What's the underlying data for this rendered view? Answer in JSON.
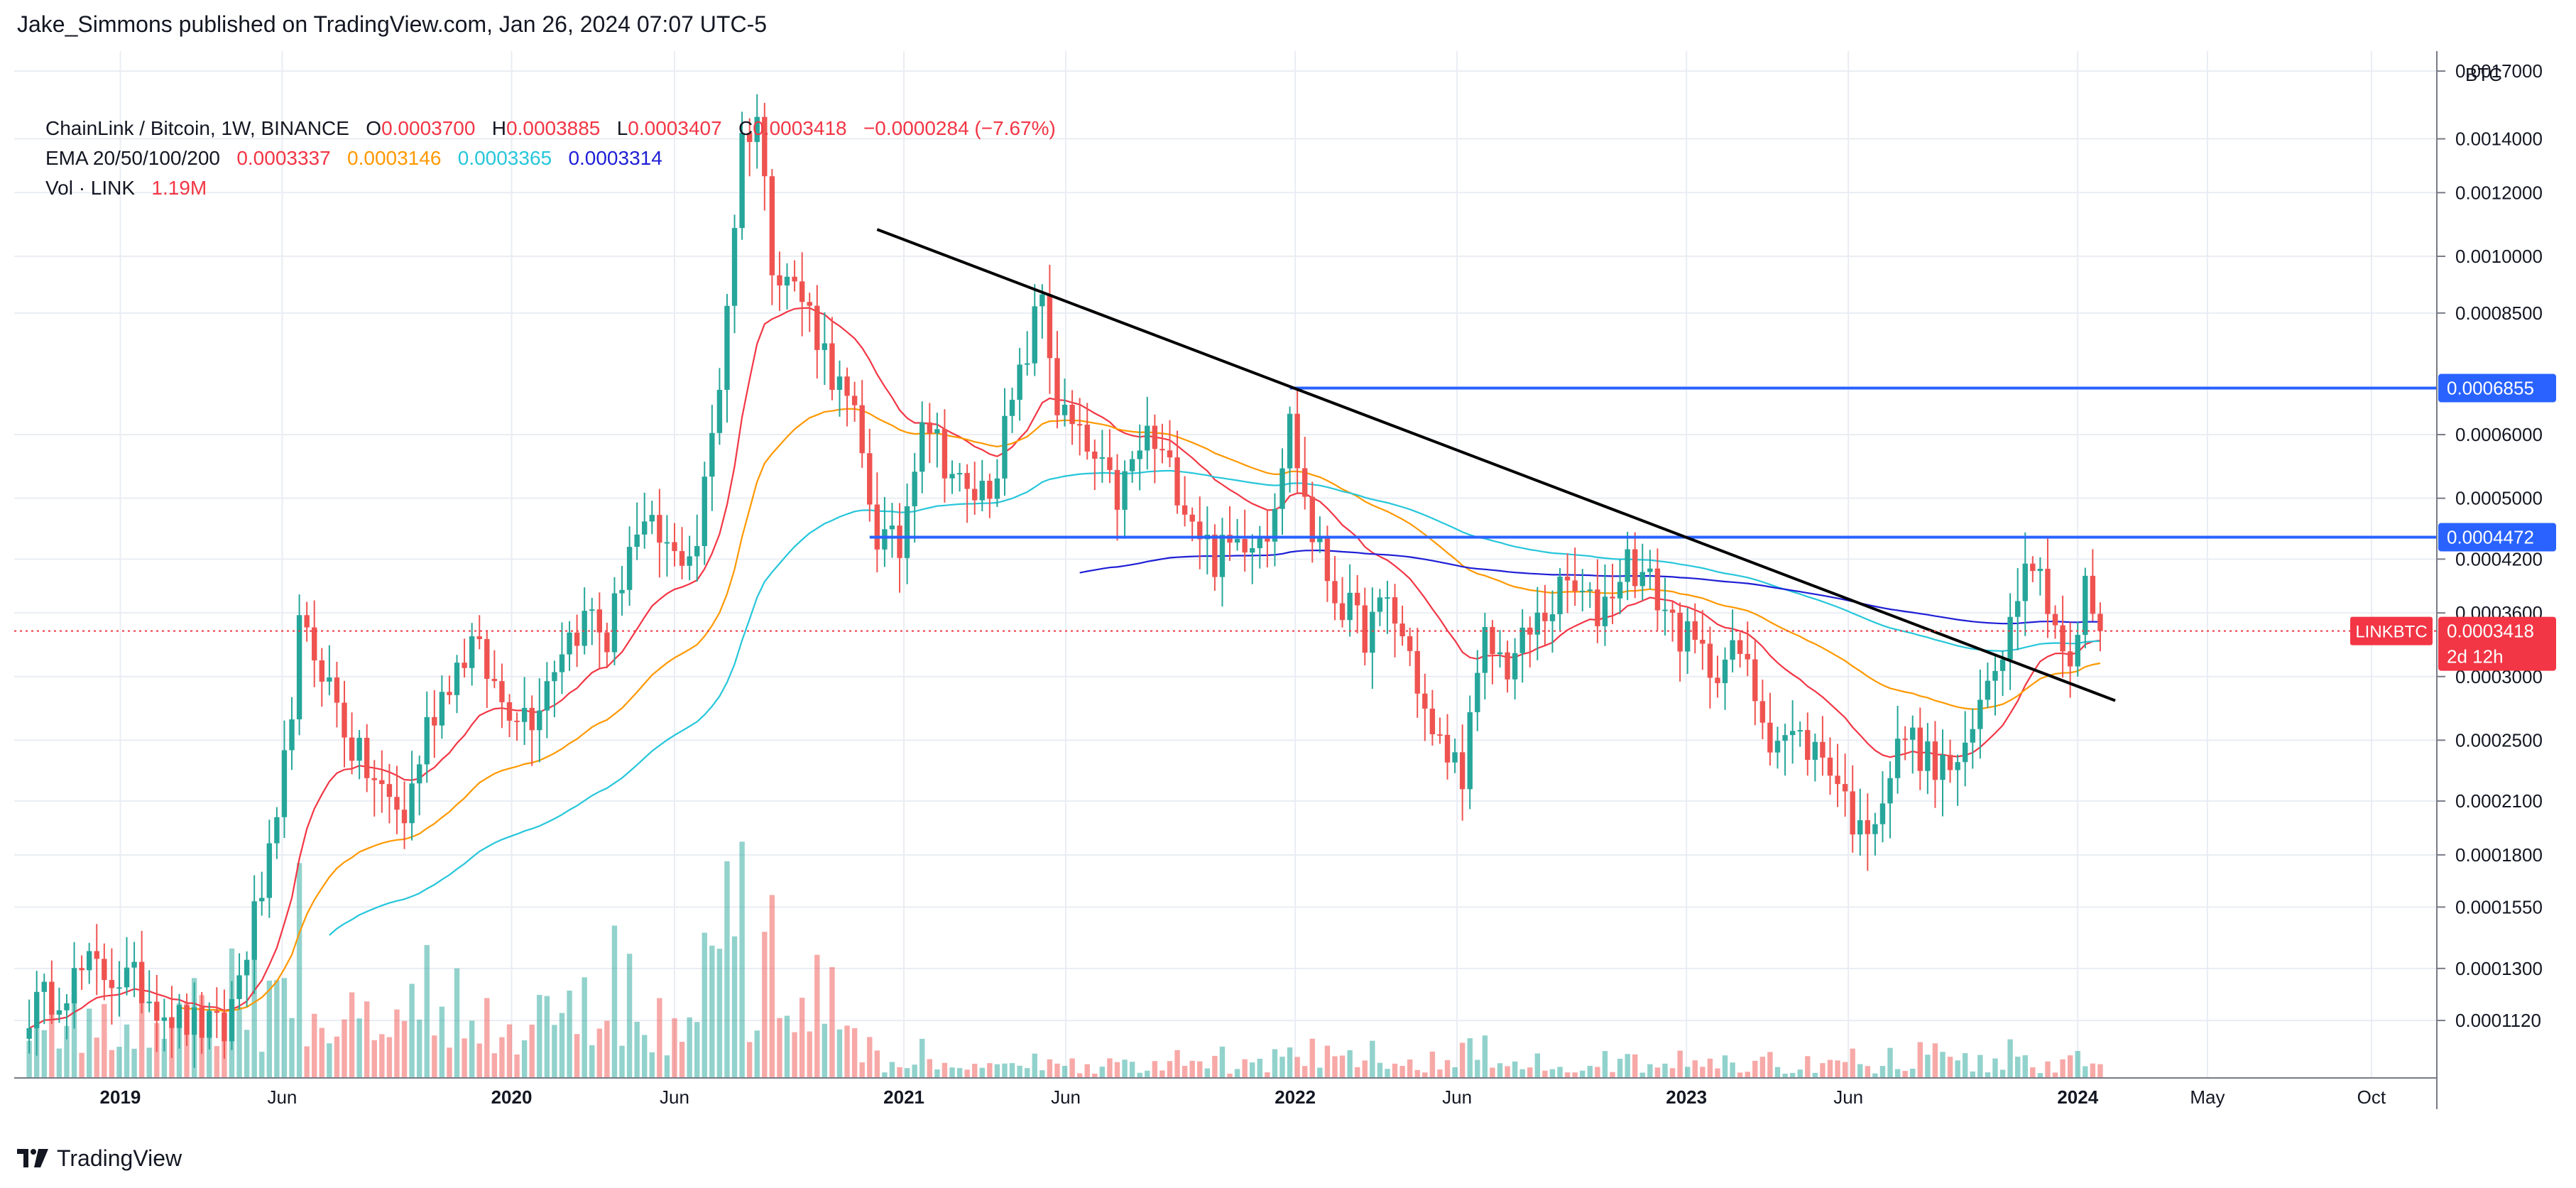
{
  "publisher_line": "Jake_Simmons published on TradingView.com, Jan 26, 2024 07:07 UTC-5",
  "legend": {
    "symbol_line": "ChainLink / Bitcoin, 1W, BINANCE",
    "ohlc": [
      {
        "label": "O",
        "value": "0.0003700"
      },
      {
        "label": "H",
        "value": "0.0003885"
      },
      {
        "label": "L",
        "value": "0.0003407"
      },
      {
        "label": "C",
        "value": "0.0003418"
      }
    ],
    "change": "−0.0000284 (−7.67%)",
    "ema_label": "EMA 20/50/100/200",
    "ema_values": [
      "0.0003337",
      "0.0003146",
      "0.0003365",
      "0.0003314"
    ],
    "vol_label": "Vol · LINK",
    "vol_value": "1.19M"
  },
  "footer": {
    "brand": "TradingView"
  },
  "colors": {
    "up": "#26a69a",
    "down": "#ef5350",
    "ema20": "#f23645",
    "ema50": "#ff9800",
    "ema100": "#26c6da",
    "ema200": "#1e1ed6",
    "level": "#2962ff",
    "trendline": "#000000",
    "grid": "#e9edf3",
    "last_price_line": "#f23645"
  },
  "chart_data": {
    "type": "candlestick",
    "symbol": "LINKBTC",
    "interval": "1W",
    "exchange": "BINANCE",
    "y_scale": "log",
    "y_axis_unit": "BTC",
    "ylim": [
      9.5e-05,
      0.0018
    ],
    "y_ticks": [
      "0.0017000",
      "0.0014000",
      "0.0012000",
      "0.0010000",
      "0.0008500",
      "0.0006000",
      "0.0005000",
      "0.0004200",
      "0.0003600",
      "0.0003000",
      "0.0002500",
      "0.0002100",
      "0.0001800",
      "0.0001550",
      "0.0001300",
      "0.0001120"
    ],
    "x_ticks": [
      "2019",
      "Jun",
      "2020",
      "Jun",
      "2021",
      "Jun",
      "2022",
      "Jun",
      "2023",
      "Jun",
      "2024",
      "May",
      "Oct"
    ],
    "x_range": [
      "2018-09-24",
      "2024-12-01"
    ],
    "price_anchors": [
      [
        "2018-10-08",
        0.000115
      ],
      [
        "2018-12-03",
        0.00013
      ],
      [
        "2019-01-14",
        0.000125
      ],
      [
        "2019-02-25",
        0.000112
      ],
      [
        "2019-04-08",
        0.000108
      ],
      [
        "2019-05-06",
        0.00015
      ],
      [
        "2019-05-27",
        0.00019
      ],
      [
        "2019-06-17",
        0.00034
      ],
      [
        "2019-07-08",
        0.00031
      ],
      [
        "2019-08-05",
        0.000245
      ],
      [
        "2019-09-02",
        0.000215
      ],
      [
        "2019-09-23",
        0.0002
      ],
      [
        "2019-10-14",
        0.00026
      ],
      [
        "2019-11-04",
        0.0003
      ],
      [
        "2019-11-25",
        0.00033
      ],
      [
        "2019-12-23",
        0.00028
      ],
      [
        "2020-01-20",
        0.00027
      ],
      [
        "2020-02-17",
        0.00033
      ],
      [
        "2020-03-16",
        0.00036
      ],
      [
        "2020-03-30",
        0.00033
      ],
      [
        "2020-04-20",
        0.00044
      ],
      [
        "2020-05-11",
        0.00045
      ],
      [
        "2020-06-01",
        0.00042
      ],
      [
        "2020-06-22",
        0.00044
      ],
      [
        "2020-07-13",
        0.0007
      ],
      [
        "2020-08-03",
        0.0014
      ],
      [
        "2020-08-17",
        0.0015
      ],
      [
        "2020-08-31",
        0.001
      ],
      [
        "2020-09-14",
        0.00095
      ],
      [
        "2020-10-05",
        0.00085
      ],
      [
        "2020-10-26",
        0.00072
      ],
      [
        "2020-11-16",
        0.00062
      ],
      [
        "2020-12-07",
        0.00045
      ],
      [
        "2020-12-28",
        0.00043
      ],
      [
        "2021-01-18",
        0.00065
      ],
      [
        "2021-02-08",
        0.00056
      ],
      [
        "2021-03-01",
        0.0005
      ],
      [
        "2021-03-22",
        0.00052
      ],
      [
        "2021-04-19",
        0.0007
      ],
      [
        "2021-05-10",
        0.0009
      ],
      [
        "2021-05-24",
        0.00065
      ],
      [
        "2021-06-21",
        0.00057
      ],
      [
        "2021-07-19",
        0.0005
      ],
      [
        "2021-08-16",
        0.0006
      ],
      [
        "2021-09-13",
        0.00052
      ],
      [
        "2021-10-18",
        0.00042
      ],
      [
        "2021-11-15",
        0.00045
      ],
      [
        "2021-12-06",
        0.00046
      ],
      [
        "2021-12-27",
        0.00062
      ],
      [
        "2022-01-17",
        0.00045
      ],
      [
        "2022-02-07",
        0.00038
      ],
      [
        "2022-03-07",
        0.00034
      ],
      [
        "2022-03-28",
        0.00037
      ],
      [
        "2022-04-18",
        0.00032
      ],
      [
        "2022-05-09",
        0.00025
      ],
      [
        "2022-06-06",
        0.00023
      ],
      [
        "2022-06-27",
        0.00033
      ],
      [
        "2022-07-18",
        0.00031
      ],
      [
        "2022-08-15",
        0.00035
      ],
      [
        "2022-09-12",
        0.00039
      ],
      [
        "2022-10-10",
        0.00036
      ],
      [
        "2022-11-07",
        0.00042
      ],
      [
        "2022-11-28",
        0.00039
      ],
      [
        "2022-12-26",
        0.00034
      ],
      [
        "2023-01-23",
        0.00031
      ],
      [
        "2023-02-20",
        0.00032
      ],
      [
        "2023-03-20",
        0.000255
      ],
      [
        "2023-04-17",
        0.00025
      ],
      [
        "2023-05-15",
        0.000235
      ],
      [
        "2023-06-12",
        0.00019
      ],
      [
        "2023-07-03",
        0.000215
      ],
      [
        "2023-07-24",
        0.000255
      ],
      [
        "2023-08-21",
        0.00023
      ],
      [
        "2023-09-18",
        0.000235
      ],
      [
        "2023-10-09",
        0.0003
      ],
      [
        "2023-10-30",
        0.00035
      ],
      [
        "2023-11-13",
        0.00044
      ],
      [
        "2023-12-04",
        0.00038
      ],
      [
        "2023-12-25",
        0.0003
      ],
      [
        "2024-01-08",
        0.000385
      ],
      [
        "2024-01-22",
        0.000342
      ]
    ],
    "horizontal_levels": [
      {
        "value": 0.0006855,
        "label": "0.0006855",
        "from": "2021-12-27"
      },
      {
        "value": 0.0004472,
        "label": "0.0004472",
        "from": "2020-11-30"
      }
    ],
    "trendline": {
      "from": [
        "2020-12-07",
        0.00108
      ],
      "to": [
        "2024-02-05",
        0.00028
      ]
    },
    "last_price": {
      "value": 0.0003418,
      "label": "0.0003418",
      "symbol_tag": "LINKBTC",
      "countdown": "2d 12h"
    },
    "ema_last": {
      "ema20": 0.0003337,
      "ema50": 0.0003146,
      "ema100": 0.0003365,
      "ema200": 0.0003314
    }
  }
}
